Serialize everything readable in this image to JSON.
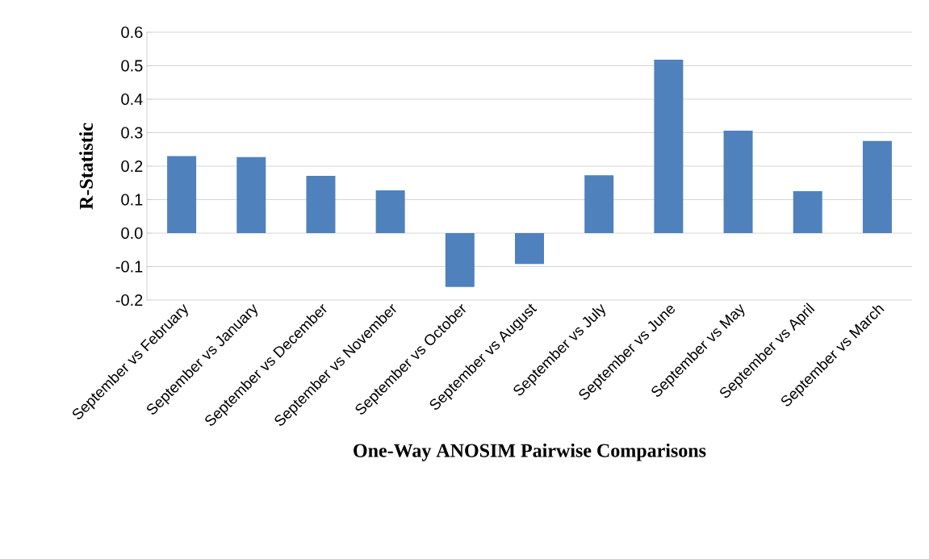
{
  "chart_data": {
    "type": "bar",
    "xlabel": "One-Way ANOSIM Pairwise Comparisons",
    "ylabel": "R-Statistic",
    "categories": [
      "September vs February",
      "September vs January",
      "September vs December",
      "September vs November",
      "September vs October",
      "September vs August",
      "September vs July",
      "September vs June",
      "September vs May",
      "September vs April",
      "September vs March"
    ],
    "values": [
      0.23,
      0.227,
      0.171,
      0.128,
      -0.161,
      -0.092,
      0.173,
      0.518,
      0.306,
      0.125,
      0.275
    ],
    "color": "#4f81bd",
    "ylim": [
      -0.2,
      0.6
    ],
    "yticks": [
      -0.2,
      -0.1,
      {
        "value": 0,
        "label": "0.0"
      },
      0.1,
      0.2,
      0.3,
      0.4,
      0.5,
      0.6
    ],
    "grid": "y"
  }
}
